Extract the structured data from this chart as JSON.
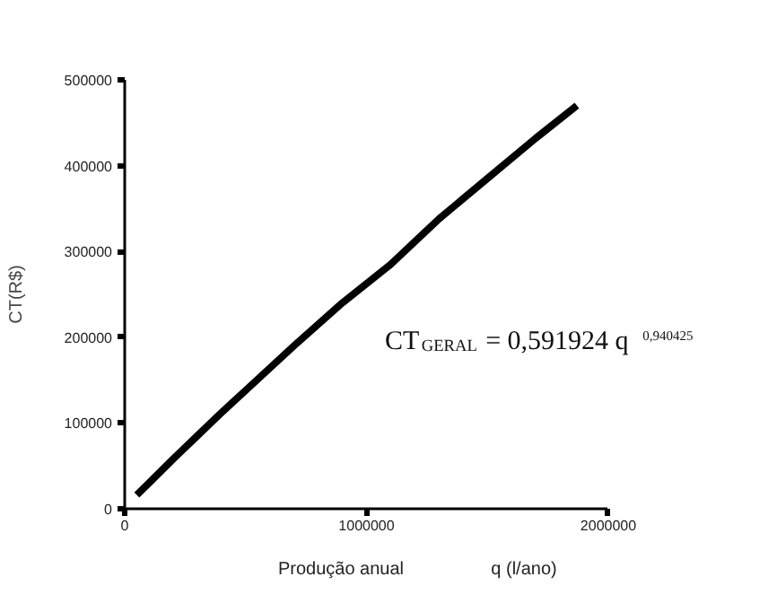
{
  "chart_data": {
    "type": "line",
    "xlabel": "Produção anual",
    "ylabel": "CT(R$)",
    "annotations": [
      "q (l/ano)",
      "CT$_{GERAL}$ = 0,591924 q $^{0,940425}$"
    ],
    "x": [
      50000,
      100000,
      200000,
      300000,
      400000,
      500000,
      700000,
      900000,
      1100000,
      1300000,
      1500000,
      1700000,
      1870000
    ],
    "series": [
      {
        "color": "#000000",
        "values": [
          16000,
          30000,
          58000,
          85000,
          112000,
          138000,
          190000,
          240000,
          285000,
          338000,
          385000,
          432000,
          470000
        ]
      }
    ],
    "xlim": [
      0,
      2000000
    ],
    "ylim": [
      0,
      500000
    ],
    "xticks": [
      0,
      1000000,
      2000000
    ],
    "yticks": [
      0,
      100000,
      200000,
      300000,
      400000,
      500000
    ],
    "grid": false
  }
}
